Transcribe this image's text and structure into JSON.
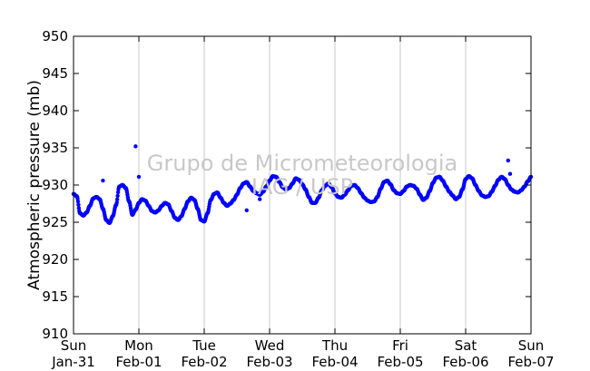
{
  "chart_data": {
    "type": "scatter",
    "title": "",
    "xlabel": "",
    "ylabel": "Atmospheric pressure (mb)",
    "watermark": [
      "Grupo de Micrometeorologia",
      "IAG / USP"
    ],
    "ylim": [
      910,
      950
    ],
    "yticks": [
      910,
      915,
      920,
      925,
      930,
      935,
      940,
      945,
      950
    ],
    "xlim": [
      0,
      7
    ],
    "xtick_labels": [
      {
        "day": "Sun",
        "date": "Jan-31"
      },
      {
        "day": "Mon",
        "date": "Feb-01"
      },
      {
        "day": "Tue",
        "date": "Feb-02"
      },
      {
        "day": "Wed",
        "date": "Feb-03"
      },
      {
        "day": "Thu",
        "date": "Feb-04"
      },
      {
        "day": "Fri",
        "date": "Feb-05"
      },
      {
        "day": "Sat",
        "date": "Feb-06"
      },
      {
        "day": "Sun",
        "date": "Feb-07"
      }
    ],
    "grid": "vertical",
    "marker_color": "#0000ff",
    "series": [
      {
        "x": [
          0.0,
          0.05,
          0.1,
          0.15,
          0.2,
          0.25,
          0.3,
          0.35,
          0.4,
          0.45,
          0.5,
          0.55,
          0.6,
          0.65,
          0.7,
          0.75,
          0.8,
          0.85,
          0.9,
          0.95,
          1.0,
          1.05,
          1.1,
          1.15,
          1.2,
          1.25,
          1.3,
          1.35,
          1.4,
          1.45,
          1.5,
          1.55,
          1.6,
          1.65,
          1.7,
          1.75,
          1.8,
          1.85,
          1.9,
          1.95,
          2.0,
          2.05,
          2.1,
          2.15,
          2.2,
          2.25,
          2.3,
          2.35,
          2.4,
          2.45,
          2.5,
          2.55,
          2.6,
          2.65,
          2.7,
          2.75,
          2.8,
          2.85,
          2.9,
          2.95,
          3.0,
          3.05,
          3.1,
          3.15,
          3.2,
          3.25,
          3.3,
          3.35,
          3.4,
          3.45,
          3.5,
          3.55,
          3.6,
          3.65,
          3.7,
          3.75,
          3.8,
          3.85,
          3.9,
          3.95,
          4.0,
          4.05,
          4.1,
          4.15,
          4.2,
          4.25,
          4.3,
          4.35,
          4.4,
          4.45,
          4.5,
          4.55,
          4.6,
          4.65,
          4.7,
          4.75,
          4.8,
          4.85,
          4.9,
          4.95,
          5.0,
          5.05,
          5.1,
          5.15,
          5.2,
          5.25,
          5.3,
          5.35,
          5.4,
          5.45,
          5.5,
          5.55,
          5.6,
          5.65,
          5.7,
          5.75,
          5.8,
          5.85,
          5.9,
          5.95,
          6.0,
          6.05,
          6.1,
          6.15,
          6.2,
          6.25,
          6.3,
          6.35,
          6.4,
          6.45,
          6.5,
          6.55,
          6.6,
          6.65,
          6.7,
          6.75,
          6.8,
          6.85,
          6.9,
          6.95,
          7.0,
          0.45,
          0.95,
          1.0,
          2.65,
          2.85,
          6.65,
          6.68
        ],
        "y": [
          928.8,
          928.5,
          926.2,
          925.9,
          926.3,
          927.2,
          928.2,
          928.4,
          928.1,
          926.8,
          925.3,
          924.9,
          925.8,
          927.3,
          929.8,
          930.0,
          929.6,
          927.8,
          926.0,
          926.7,
          927.6,
          928.1,
          927.9,
          927.2,
          926.5,
          926.3,
          926.6,
          927.2,
          927.6,
          927.4,
          926.5,
          925.6,
          925.3,
          925.8,
          926.8,
          927.8,
          928.3,
          928.0,
          926.8,
          925.3,
          925.1,
          926.2,
          928.0,
          928.8,
          929.0,
          928.3,
          927.6,
          927.2,
          927.5,
          928.0,
          928.7,
          929.6,
          930.2,
          930.4,
          929.8,
          929.2,
          928.9,
          928.7,
          929.1,
          929.8,
          930.6,
          931.2,
          931.1,
          930.4,
          929.7,
          929.4,
          929.6,
          930.2,
          930.9,
          930.7,
          930.1,
          929.4,
          928.4,
          927.6,
          927.6,
          928.3,
          929.3,
          929.9,
          930.2,
          929.7,
          928.9,
          928.4,
          928.3,
          928.7,
          929.3,
          929.9,
          930.0,
          929.6,
          928.9,
          928.3,
          927.9,
          927.7,
          927.8,
          928.4,
          929.5,
          930.4,
          930.6,
          930.1,
          929.3,
          928.9,
          928.8,
          929.2,
          929.8,
          930.0,
          929.9,
          929.5,
          928.7,
          928.0,
          928.3,
          929.2,
          930.3,
          931.0,
          931.1,
          930.6,
          929.8,
          929.1,
          928.6,
          928.1,
          928.4,
          929.4,
          930.8,
          931.2,
          930.9,
          930.0,
          929.2,
          928.6,
          928.4,
          928.5,
          929.1,
          929.9,
          930.7,
          931.1,
          930.8,
          930.0,
          929.4,
          929.1,
          929.0,
          929.3,
          929.8,
          930.5,
          931.1,
          930.6,
          935.2,
          931.1,
          926.6,
          928.1,
          933.3,
          931.5
        ]
      }
    ]
  }
}
